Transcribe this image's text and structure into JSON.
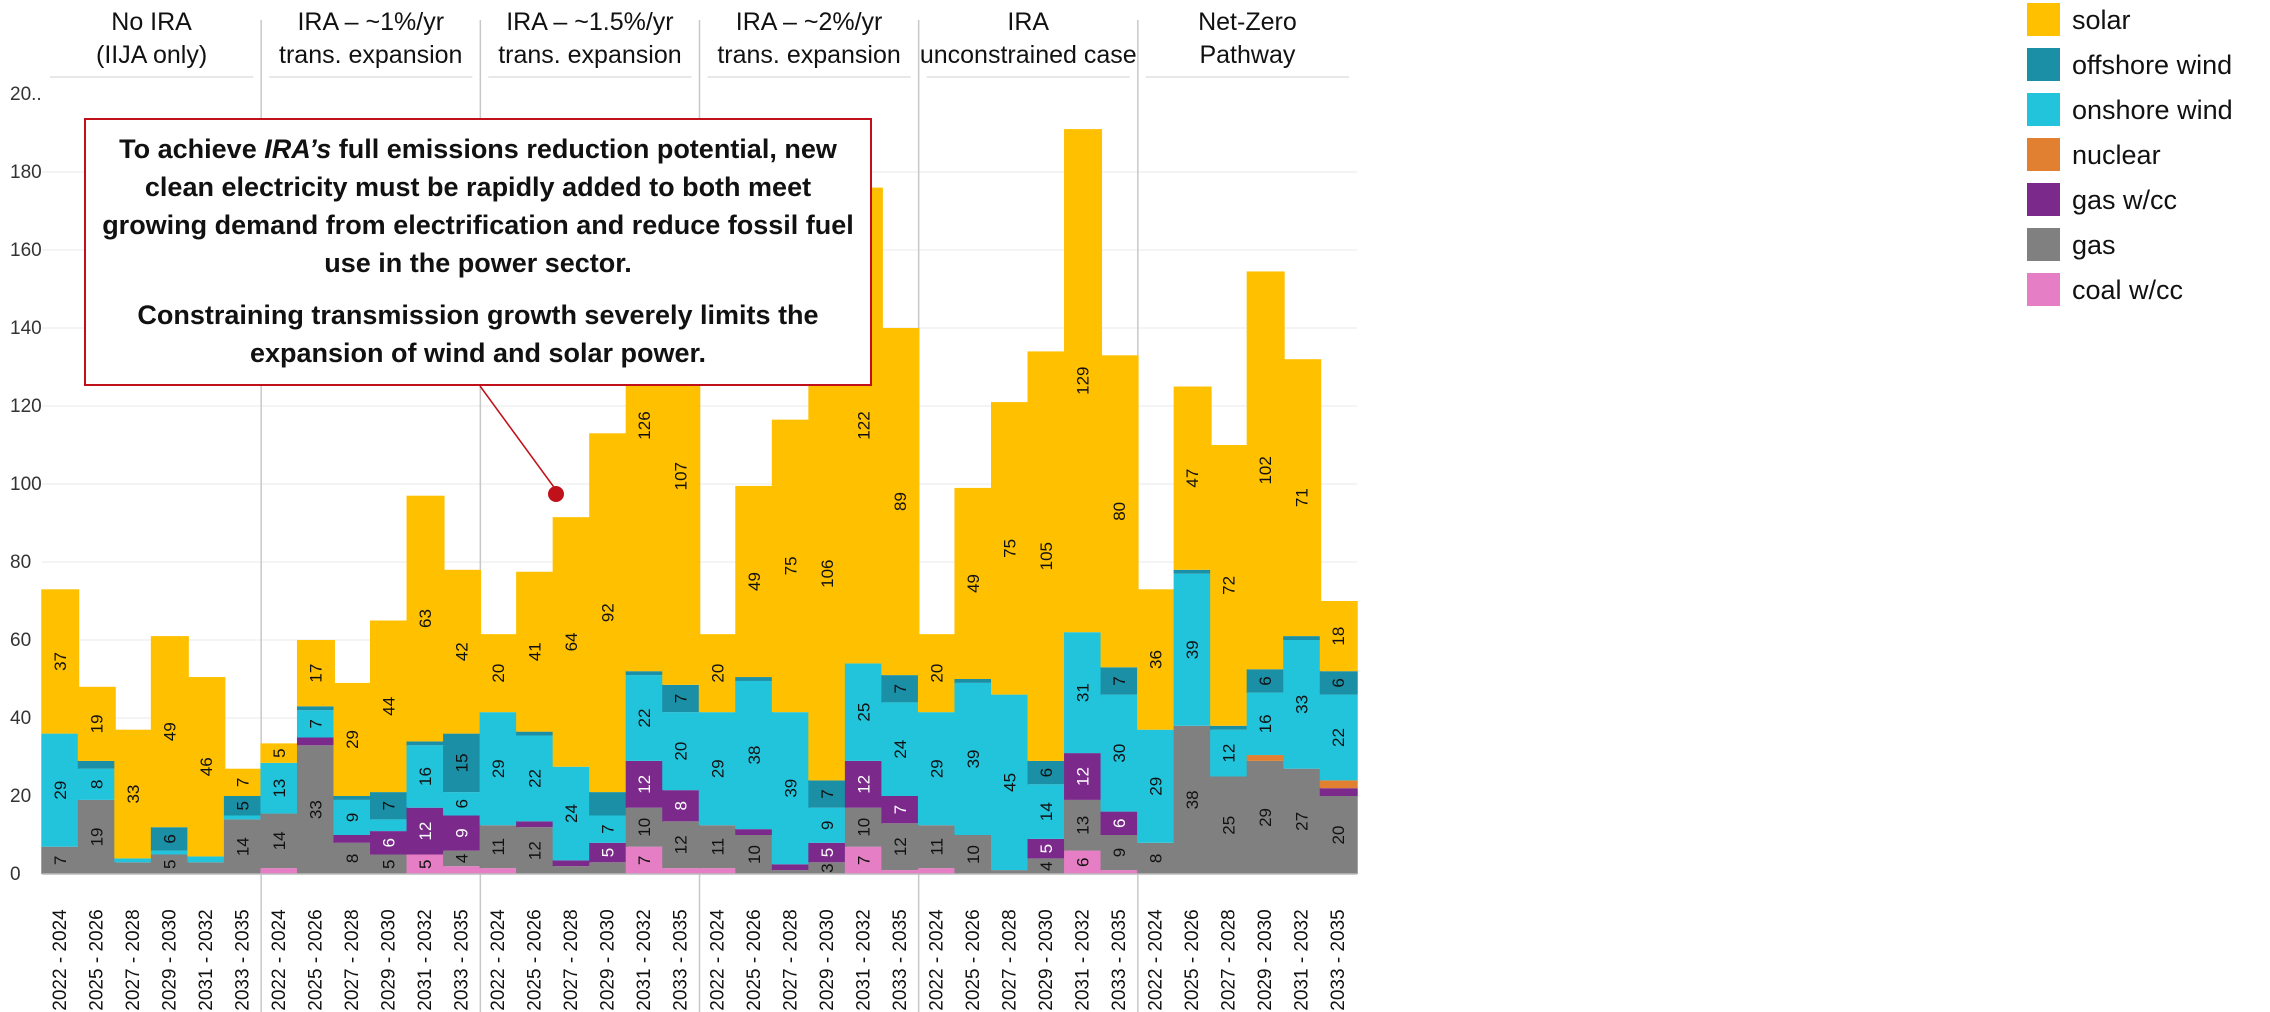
{
  "callout": {
    "line1_pre": "To achieve ",
    "line1_em": "IRA’s",
    "line1_post": " full emissions reduction potential, new clean electricity must be rapidly added to both meet growing demand from electrification and reduce fossil fuel use in the power sector.",
    "line2": "Constraining transmission growth severely limits the expansion of wind and solar power."
  },
  "chart_data": {
    "type": "bar",
    "stacked": true,
    "ylim": [
      0,
      200
    ],
    "yticks": [
      0,
      20,
      40,
      60,
      80,
      100,
      120,
      140,
      160,
      180
    ],
    "ytick_top_label": "20..",
    "grid": true,
    "legend_placement": "right",
    "groups": [
      {
        "label": "No IRA\n(IIJA only)"
      },
      {
        "label": "IRA – ~1%/yr\ntrans. expansion"
      },
      {
        "label": "IRA – ~1.5%/yr\ntrans. expansion"
      },
      {
        "label": "IRA – ~2%/yr\ntrans. expansion"
      },
      {
        "label": "IRA\nunconstrained case"
      },
      {
        "label": "Net-Zero\nPathway"
      }
    ],
    "categories": [
      "2022 - 2024",
      "2025 - 2026",
      "2027 - 2028",
      "2029 - 2030",
      "2031 - 2032",
      "2033 - 2035"
    ],
    "series": [
      {
        "name": "coal w/cc",
        "color": "#e57ec4",
        "label_color": "#111111",
        "values": [
          [
            0,
            0,
            0,
            0,
            0,
            0
          ],
          [
            1.5,
            0,
            0,
            0,
            5,
            2
          ],
          [
            1.5,
            0,
            0,
            0,
            7,
            1.5
          ],
          [
            1.5,
            0,
            0,
            0,
            7,
            1
          ],
          [
            1.5,
            0,
            0,
            0,
            6,
            1
          ],
          [
            0,
            0,
            0,
            0,
            0,
            0
          ]
        ],
        "labels": [
          [
            null,
            null,
            null,
            null,
            null,
            null
          ],
          [
            null,
            null,
            null,
            null,
            "5",
            null
          ],
          [
            null,
            null,
            null,
            null,
            "7",
            null
          ],
          [
            null,
            null,
            null,
            null,
            "7",
            null
          ],
          [
            null,
            null,
            null,
            null,
            "6",
            null
          ],
          [
            null,
            null,
            null,
            null,
            null,
            null
          ]
        ]
      },
      {
        "name": "gas",
        "color": "#808080",
        "label_color": "#111111",
        "values": [
          [
            7,
            19,
            3,
            5,
            3,
            14
          ],
          [
            14,
            33,
            8,
            5,
            0,
            4
          ],
          [
            11,
            12,
            2,
            3,
            10,
            12
          ],
          [
            11,
            10,
            1,
            3,
            10,
            12
          ],
          [
            11,
            10,
            1,
            4,
            13,
            9
          ],
          [
            8,
            38,
            25,
            29,
            27,
            20
          ]
        ],
        "labels": [
          [
            "7",
            "19",
            null,
            "5",
            null,
            "14"
          ],
          [
            "14",
            "33",
            "8",
            "5",
            null,
            "4"
          ],
          [
            "11",
            "12",
            null,
            null,
            "10",
            "12"
          ],
          [
            "11",
            "10",
            null,
            "3",
            "10",
            "12"
          ],
          [
            "11",
            "10",
            null,
            "4",
            "13",
            "9"
          ],
          [
            "8",
            "38",
            "25",
            "29",
            "27",
            "20"
          ]
        ]
      },
      {
        "name": "gas w/cc",
        "color": "#7b2a8c",
        "label_color": "#ffffff",
        "values": [
          [
            0,
            0,
            0,
            0,
            0,
            0
          ],
          [
            0,
            2,
            2,
            6,
            12,
            9
          ],
          [
            0,
            1.5,
            1.5,
            5,
            12,
            8
          ],
          [
            0,
            1.5,
            1.5,
            5,
            12,
            7
          ],
          [
            0,
            0,
            0,
            5,
            12,
            6
          ],
          [
            0,
            0,
            0,
            0,
            0,
            2
          ]
        ],
        "labels": [
          [
            null,
            null,
            null,
            null,
            null,
            null
          ],
          [
            null,
            null,
            null,
            "6",
            "12",
            "9"
          ],
          [
            null,
            null,
            null,
            "5",
            "12",
            "8"
          ],
          [
            null,
            null,
            null,
            "5",
            "12",
            "7"
          ],
          [
            null,
            null,
            null,
            "5",
            "12",
            "6"
          ],
          [
            null,
            null,
            null,
            null,
            null,
            null
          ]
        ]
      },
      {
        "name": "nuclear",
        "color": "#e08030",
        "label_color": "#111111",
        "values": [
          [
            0,
            0,
            0,
            0,
            0,
            0
          ],
          [
            0,
            0,
            0,
            0,
            0,
            0
          ],
          [
            0,
            0,
            0,
            0,
            0,
            0
          ],
          [
            0,
            0,
            0,
            0,
            0,
            0
          ],
          [
            0,
            0,
            0,
            0,
            0,
            0
          ],
          [
            0,
            0,
            0,
            1.5,
            0,
            2
          ]
        ],
        "labels": [
          [
            null,
            null,
            null,
            null,
            null,
            null
          ],
          [
            null,
            null,
            null,
            null,
            null,
            null
          ],
          [
            null,
            null,
            null,
            null,
            null,
            null
          ],
          [
            null,
            null,
            null,
            null,
            null,
            null
          ],
          [
            null,
            null,
            null,
            null,
            null,
            null
          ],
          [
            null,
            null,
            null,
            null,
            null,
            null
          ]
        ]
      },
      {
        "name": "onshore wind",
        "color": "#22c4dc",
        "label_color": "#111111",
        "values": [
          [
            29,
            8,
            1,
            1,
            1.5,
            1
          ],
          [
            13,
            7,
            9,
            3,
            16,
            6
          ],
          [
            29,
            22,
            24,
            7,
            22,
            20
          ],
          [
            29,
            38,
            39,
            9,
            25,
            24
          ],
          [
            29,
            39,
            45,
            14,
            31,
            30
          ],
          [
            29,
            39,
            12,
            16,
            33,
            22
          ]
        ],
        "labels": [
          [
            "29",
            "8",
            null,
            null,
            null,
            null
          ],
          [
            "13",
            "7",
            "9",
            null,
            "16",
            "6"
          ],
          [
            "29",
            "22",
            "24",
            "7",
            "22",
            "20"
          ],
          [
            "29",
            "38",
            "39",
            "9",
            "25",
            "24"
          ],
          [
            "29",
            "39",
            "45",
            "14",
            "31",
            "30"
          ],
          [
            "29",
            "39",
            "12",
            "16",
            "33",
            "22"
          ]
        ]
      },
      {
        "name": "offshore wind",
        "color": "#1a8fa6",
        "label_color": "#111111",
        "values": [
          [
            0,
            2,
            0,
            6,
            0,
            5
          ],
          [
            0,
            1,
            1,
            7,
            1,
            15
          ],
          [
            0,
            1,
            0,
            6,
            1,
            7
          ],
          [
            0,
            1,
            0,
            7,
            0,
            7
          ],
          [
            0,
            1,
            0,
            6,
            0,
            7
          ],
          [
            0,
            1,
            1,
            6,
            1,
            6
          ]
        ],
        "labels": [
          [
            null,
            null,
            null,
            "6",
            null,
            "5"
          ],
          [
            null,
            null,
            null,
            "7",
            null,
            "15"
          ],
          [
            null,
            null,
            null,
            null,
            null,
            "7"
          ],
          [
            null,
            null,
            null,
            "7",
            null,
            "7"
          ],
          [
            null,
            null,
            null,
            "6",
            null,
            "7"
          ],
          [
            null,
            null,
            null,
            "6",
            null,
            "6"
          ]
        ]
      },
      {
        "name": "solar",
        "color": "#ffc000",
        "label_color": "#111111",
        "values": [
          [
            37,
            19,
            33,
            49,
            46,
            7
          ],
          [
            5,
            17,
            29,
            44,
            63,
            42
          ],
          [
            20,
            41,
            64,
            92,
            126,
            107
          ],
          [
            20,
            49,
            75,
            106,
            122,
            89
          ],
          [
            20,
            49,
            75,
            105,
            129,
            80
          ],
          [
            36,
            47,
            72,
            102,
            71,
            18
          ]
        ],
        "labels": [
          [
            "37",
            "19",
            "33",
            "49",
            "46",
            "7"
          ],
          [
            "5",
            "17",
            "29",
            "44",
            "63",
            "42"
          ],
          [
            "20",
            "41",
            "64",
            "92",
            "126",
            "107"
          ],
          [
            "20",
            "49",
            "75",
            "106",
            "122",
            "89"
          ],
          [
            "20",
            "49",
            "75",
            "105",
            "129",
            "80"
          ],
          [
            "36",
            "47",
            "72",
            "102",
            "71",
            "18"
          ]
        ]
      }
    ],
    "legend_order": [
      "solar",
      "offshore wind",
      "onshore wind",
      "nuclear",
      "gas w/cc",
      "gas",
      "coal w/cc"
    ]
  }
}
